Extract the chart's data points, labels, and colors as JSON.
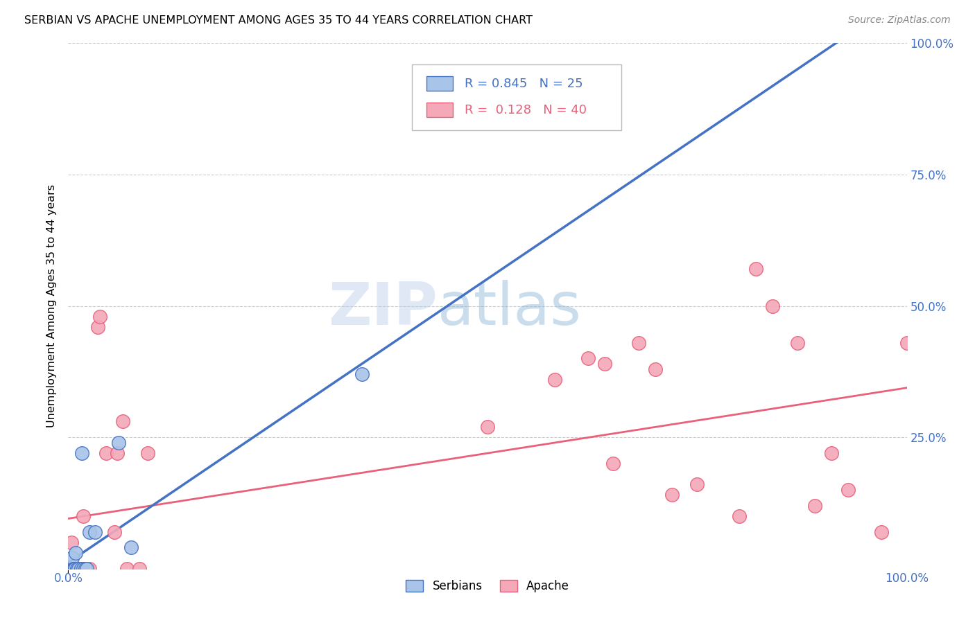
{
  "title": "SERBIAN VS APACHE UNEMPLOYMENT AMONG AGES 35 TO 44 YEARS CORRELATION CHART",
  "source": "Source: ZipAtlas.com",
  "ylabel": "Unemployment Among Ages 35 to 44 years",
  "legend_serbian": "Serbians",
  "legend_apache": "Apache",
  "r_serbian": 0.845,
  "n_serbian": 25,
  "r_apache": 0.128,
  "n_apache": 40,
  "serbian_color": "#a8c4e8",
  "apache_color": "#f4a8b8",
  "serbian_line_color": "#4472c4",
  "apache_line_color": "#e8607a",
  "dashed_line_color": "#a8c4e8",
  "watermark_color": "#d0e0f4",
  "background_color": "#ffffff",
  "grid_color": "#cccccc",
  "serbian_x": [
    0.0,
    0.0,
    0.0,
    0.004,
    0.004,
    0.004,
    0.005,
    0.005,
    0.006,
    0.007,
    0.007,
    0.008,
    0.009,
    0.01,
    0.012,
    0.015,
    0.016,
    0.018,
    0.02,
    0.022,
    0.025,
    0.032,
    0.06,
    0.075,
    0.35
  ],
  "serbian_y": [
    0.0,
    0.0,
    0.0,
    0.0,
    0.0,
    0.0,
    0.0,
    0.02,
    0.0,
    0.0,
    0.0,
    0.0,
    0.03,
    0.0,
    0.0,
    0.0,
    0.22,
    0.0,
    0.0,
    0.0,
    0.07,
    0.07,
    0.24,
    0.04,
    0.37
  ],
  "apache_x": [
    0.0,
    0.0,
    0.0,
    0.0,
    0.0,
    0.004,
    0.008,
    0.009,
    0.01,
    0.012,
    0.015,
    0.018,
    0.025,
    0.035,
    0.038,
    0.045,
    0.055,
    0.058,
    0.065,
    0.07,
    0.085,
    0.095,
    0.5,
    0.58,
    0.62,
    0.64,
    0.65,
    0.68,
    0.7,
    0.72,
    0.75,
    0.8,
    0.82,
    0.84,
    0.87,
    0.89,
    0.91,
    0.93,
    0.97,
    1.0
  ],
  "apache_y": [
    0.0,
    0.0,
    0.0,
    0.0,
    0.0,
    0.05,
    0.0,
    0.0,
    0.0,
    0.0,
    0.0,
    0.1,
    0.0,
    0.46,
    0.48,
    0.22,
    0.07,
    0.22,
    0.28,
    0.0,
    0.0,
    0.22,
    0.27,
    0.36,
    0.4,
    0.39,
    0.2,
    0.43,
    0.38,
    0.14,
    0.16,
    0.1,
    0.57,
    0.5,
    0.43,
    0.12,
    0.22,
    0.15,
    0.07,
    0.43
  ],
  "xlim": [
    0.0,
    1.0
  ],
  "ylim": [
    0.0,
    1.0
  ],
  "ytick_positions": [
    0.0,
    0.25,
    0.5,
    0.75,
    1.0
  ],
  "ytick_labels_right": [
    "",
    "25.0%",
    "50.0%",
    "75.0%",
    "100.0%"
  ],
  "xtick_labels": [
    "0.0%",
    "100.0%"
  ]
}
